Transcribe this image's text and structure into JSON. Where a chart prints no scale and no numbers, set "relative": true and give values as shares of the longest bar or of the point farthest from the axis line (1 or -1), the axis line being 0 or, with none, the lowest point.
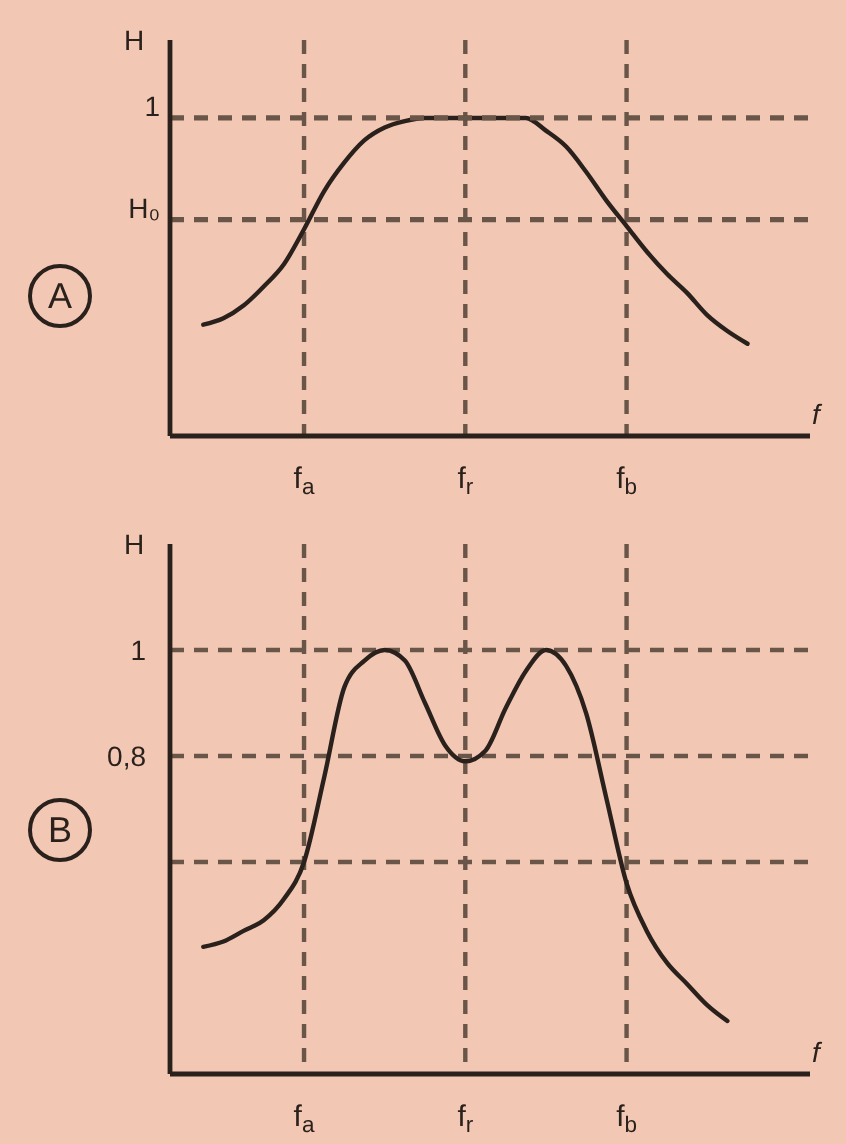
{
  "chart_data": [
    {
      "type": "line",
      "title": "A",
      "xlabel": "f",
      "ylabel": "H",
      "relative": true,
      "grid": "x",
      "color": "#2b211c",
      "categories": [
        null,
        null,
        null,
        null,
        null,
        "f$_{a}$",
        null,
        null,
        null,
        null,
        null,
        null,
        null,
        "f$_{r}$",
        null,
        null,
        null,
        null,
        null,
        null,
        null,
        "f$_{b}$",
        null,
        null,
        null,
        null,
        null,
        null
      ],
      "values": [
        0.35,
        0.37,
        0.41,
        0.47,
        0.54,
        0.65,
        0.77,
        0.86,
        0.93,
        0.97,
        0.99,
        1,
        1,
        1,
        1,
        1,
        1,
        0.96,
        0.91,
        0.83,
        0.74,
        0.66,
        0.58,
        0.51,
        0.45,
        0.38,
        0.33,
        0.29
      ],
      "ref_lines": [
        {
          "axis": "y",
          "value": 0.68,
          "label": "H₀",
          "line_style": "dashed",
          "color": "#6a5648"
        },
        {
          "axis": "y",
          "value": 1,
          "label": "1",
          "line_style": "dashed",
          "color": "#6a5648"
        }
      ]
    },
    {
      "type": "line",
      "title": "B",
      "xlabel": "f",
      "ylabel": "H",
      "grid": true,
      "color": "#2b211c",
      "categories": [
        null,
        null,
        null,
        null,
        null,
        "f$_{a}$",
        null,
        null,
        null,
        null,
        null,
        null,
        null,
        "f$_{r}$",
        null,
        null,
        null,
        null,
        null,
        null,
        null,
        "f$_{b}$",
        null,
        null,
        null,
        null,
        null
      ],
      "values": [
        0.44,
        0.45,
        0.47,
        0.49,
        0.53,
        0.6,
        0.76,
        0.93,
        0.98,
        1,
        0.98,
        0.9,
        0.82,
        0.79,
        0.81,
        0.89,
        0.96,
        1,
        0.97,
        0.88,
        0.72,
        0.56,
        0.47,
        0.41,
        0.37,
        0.33,
        0.3
      ],
      "ylim": [
        0.2,
        1.2
      ],
      "yticks": [
        1,
        {
          "value": 0.8,
          "label": "0,8"
        },
        {
          "value": 0.6,
          "label": null
        }
      ]
    }
  ]
}
